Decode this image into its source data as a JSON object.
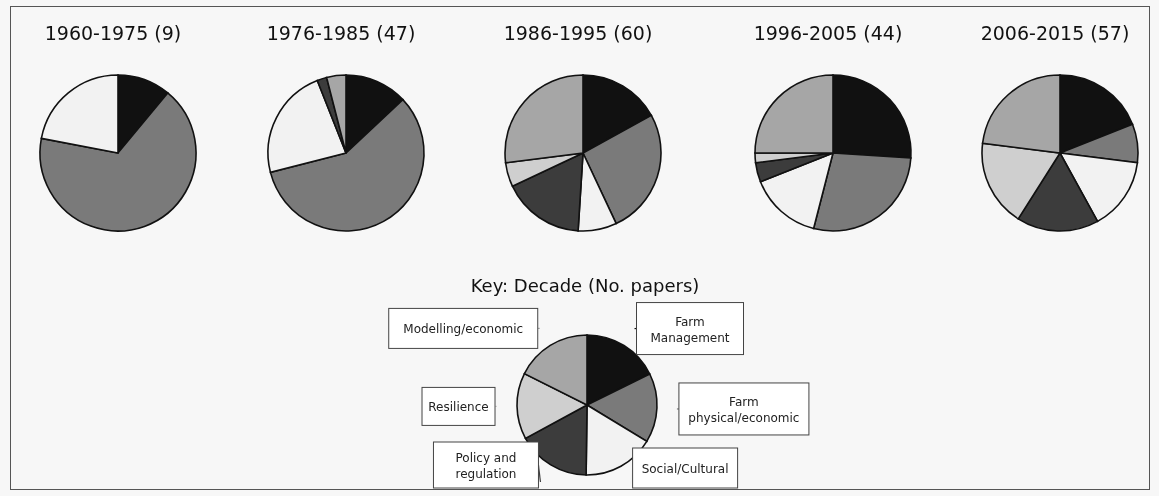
{
  "chart_data": [
    {
      "type": "pie",
      "title": "1960-1975 (9)",
      "categories": [
        null,
        null,
        null,
        null,
        null,
        null
      ],
      "values": [
        11,
        67,
        22,
        0,
        0,
        0
      ],
      "colors": [
        "#111111",
        "#7a7a7a",
        "#f2f2f2",
        "#3c3c3c",
        "#cfcfcf",
        "#a6a6a6"
      ]
    },
    {
      "type": "pie",
      "title": "1976-1985 (47)",
      "categories": [
        null,
        null,
        null,
        null,
        null,
        null
      ],
      "values": [
        13,
        58,
        23,
        2,
        0,
        4
      ],
      "colors": [
        "#111111",
        "#7a7a7a",
        "#f2f2f2",
        "#3c3c3c",
        "#cfcfcf",
        "#a6a6a6"
      ]
    },
    {
      "type": "pie",
      "title": "1986-1995 (60)",
      "categories": [
        null,
        null,
        null,
        null,
        null,
        null
      ],
      "values": [
        17,
        26,
        8,
        17,
        5,
        27
      ],
      "colors": [
        "#111111",
        "#7a7a7a",
        "#f2f2f2",
        "#3c3c3c",
        "#cfcfcf",
        "#a6a6a6"
      ]
    },
    {
      "type": "pie",
      "title": "1996-2005 (44)",
      "categories": [
        null,
        null,
        null,
        null,
        null,
        null
      ],
      "values": [
        26,
        28,
        15,
        4,
        2,
        25
      ],
      "colors": [
        "#111111",
        "#7a7a7a",
        "#f2f2f2",
        "#3c3c3c",
        "#cfcfcf",
        "#a6a6a6"
      ]
    },
    {
      "type": "pie",
      "title": "2006-2015 (57)",
      "categories": [
        null,
        null,
        null,
        null,
        null,
        null
      ],
      "values": [
        19,
        8,
        15,
        17,
        18,
        23
      ],
      "colors": [
        "#111111",
        "#7a7a7a",
        "#f2f2f2",
        "#3c3c3c",
        "#cfcfcf",
        "#a6a6a6"
      ]
    },
    {
      "type": "pie",
      "title": "Key: Decade (No. papers)",
      "categories": [
        "Farm Management",
        "Farm physical/economic",
        "Social/Cultural",
        "Policy and regulation",
        "Resilience",
        "Modelling/economic"
      ],
      "values": [
        17.7,
        16.0,
        16.5,
        16.9,
        15.3,
        17.6
      ],
      "legend": "top left",
      "colors": [
        "#111111",
        "#7a7a7a",
        "#f2f2f2",
        "#3c3c3c",
        "#cfcfcf",
        "#a6a6a6"
      ]
    }
  ]
}
